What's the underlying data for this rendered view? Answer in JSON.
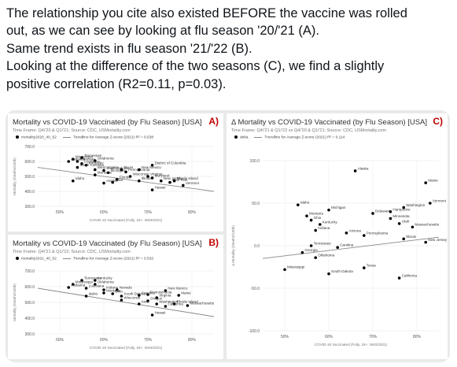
{
  "tweet": {
    "lines": [
      "The relationship you cite also existed BEFORE the vaccine was rolled",
      "out, as we can see by looking at flu season '20/'21 (A).",
      "Same trend exists in flu season '21/'22 (B).",
      "Looking at the difference of the two seasons (C), we find a slightly",
      "positive correlation (R2=0.11, p=0.03)."
    ]
  },
  "colors": {
    "text": "#0f1419",
    "tag": "#c00000",
    "dots": "#000000",
    "trend": "#888888",
    "card_bg": "#e9e9e9"
  },
  "chart_data": [
    {
      "type": "scatter",
      "tag": "A)",
      "title": "Mortality vs COVID-19 Vaccinated (by Flu Season) [USA]",
      "subtitle": "Time Frame: Q4/'20 & Q1/'21; Source: CDC, USMortality.com",
      "legend": [
        "mortality2020_40_52",
        "Trendline for Average Z-score (2021) R² = 0.538"
      ],
      "xlabel": "COVID-19 Vaccinated (Fully, 18+; W40/2021)",
      "ylabel": "Mortality (Deaths/100k)",
      "x_ticks": [
        "50%",
        "60%",
        "70%",
        "80%"
      ],
      "y_ticks": [
        "300.0",
        "400.0",
        "500.0",
        "600.0",
        "700.0"
      ],
      "xlim": [
        45,
        85
      ],
      "ylim": [
        300,
        700
      ],
      "trendline": [
        [
          45,
          560
        ],
        [
          85,
          400
        ]
      ],
      "points": [
        {
          "x": 53,
          "y": 615,
          "label": "Mississippi"
        },
        {
          "x": 55,
          "y": 625,
          "label": "Tennessee"
        },
        {
          "x": 52,
          "y": 600,
          "label": "Alabama"
        },
        {
          "x": 54,
          "y": 600,
          "label": "Arkansas"
        },
        {
          "x": 58,
          "y": 605,
          "label": "Oklahoma"
        },
        {
          "x": 55,
          "y": 585,
          "label": "Louisiana"
        },
        {
          "x": 56,
          "y": 575,
          "label": "Kentucky"
        },
        {
          "x": 54,
          "y": 560,
          "label": "South Carolina"
        },
        {
          "x": 58,
          "y": 545,
          "label": "West Virginia"
        },
        {
          "x": 60,
          "y": 540,
          "label": "South Dakota"
        },
        {
          "x": 61,
          "y": 525,
          "label": "Michigan"
        },
        {
          "x": 58,
          "y": 510,
          "label": "Montana"
        },
        {
          "x": 53,
          "y": 470,
          "label": "Idaho"
        },
        {
          "x": 64,
          "y": 545,
          "label": "Texas"
        },
        {
          "x": 65,
          "y": 530,
          "label": "Pennsylvania"
        },
        {
          "x": 68,
          "y": 545,
          "label": "New Mexico"
        },
        {
          "x": 71,
          "y": 575,
          "label": "District of Columbia"
        },
        {
          "x": 66,
          "y": 500,
          "label": "Wisconsin"
        },
        {
          "x": 70,
          "y": 500,
          "label": "Virginia"
        },
        {
          "x": 71,
          "y": 490,
          "label": "Maryland"
        },
        {
          "x": 63,
          "y": 480,
          "label": "Florida"
        },
        {
          "x": 60,
          "y": 455,
          "label": "Alaska"
        },
        {
          "x": 62,
          "y": 460,
          "label": "Iowa"
        },
        {
          "x": 68,
          "y": 470,
          "label": "Illinois"
        },
        {
          "x": 73,
          "y": 470,
          "label": "New Jersey"
        },
        {
          "x": 75,
          "y": 460,
          "label": "New York"
        },
        {
          "x": 76,
          "y": 470,
          "label": "Rhode Island"
        },
        {
          "x": 78,
          "y": 440,
          "label": "Vermont"
        },
        {
          "x": 71,
          "y": 410,
          "label": "Hawaii"
        }
      ]
    },
    {
      "type": "scatter",
      "tag": "B)",
      "title": "Mortality vs COVID-19 Vaccinated (by Flu Season) [USA]",
      "subtitle": "Time Frame: Q4/'21 & Q1/'22; Source: CDC, USMortality.com",
      "legend": [
        "mortality2021_40_52",
        "Trendline for Average Z-score (2021) R² = 0.532"
      ],
      "xlabel": "COVID-19 Vaccinated (Fully, 18+; W40/2021)",
      "ylabel": "Mortality (Deaths/100k)",
      "x_ticks": [
        "50%",
        "60%",
        "70%",
        "80%"
      ],
      "y_ticks": [
        "300.0",
        "400.0",
        "500.0",
        "600.0",
        "700.0"
      ],
      "xlim": [
        45,
        85
      ],
      "ylim": [
        300,
        700
      ],
      "trendline": [
        [
          45,
          590
        ],
        [
          85,
          410
        ]
      ],
      "points": [
        {
          "x": 53,
          "y": 615,
          "label": "Mississippi"
        },
        {
          "x": 55,
          "y": 640,
          "label": "Tennessee"
        },
        {
          "x": 58,
          "y": 640,
          "label": "Kentucky"
        },
        {
          "x": 52,
          "y": 595,
          "label": "Alabama"
        },
        {
          "x": 58,
          "y": 615,
          "label": "Oklahoma"
        },
        {
          "x": 56,
          "y": 590,
          "label": "Louisiana"
        },
        {
          "x": 60,
          "y": 580,
          "label": "Indiana"
        },
        {
          "x": 63,
          "y": 580,
          "label": "Nevada"
        },
        {
          "x": 60,
          "y": 560,
          "label": "Montana"
        },
        {
          "x": 62,
          "y": 555,
          "label": "Ohio"
        },
        {
          "x": 64,
          "y": 540,
          "label": "South Dakota"
        },
        {
          "x": 68,
          "y": 545,
          "label": "Carolina"
        },
        {
          "x": 70,
          "y": 550,
          "label": "Pennsylvania"
        },
        {
          "x": 74,
          "y": 575,
          "label": "New Mexico"
        },
        {
          "x": 56,
          "y": 540,
          "label": "Idaho"
        },
        {
          "x": 64,
          "y": 515,
          "label": "Wisconsin"
        },
        {
          "x": 70,
          "y": 510,
          "label": "Oregon"
        },
        {
          "x": 72,
          "y": 530,
          "label": "Virginia"
        },
        {
          "x": 77,
          "y": 545,
          "label": "Maine"
        },
        {
          "x": 68,
          "y": 490,
          "label": "Iowa"
        },
        {
          "x": 72,
          "y": 490,
          "label": "Washington"
        },
        {
          "x": 76,
          "y": 490,
          "label": "Rhode Island"
        },
        {
          "x": 74,
          "y": 475,
          "label": "California"
        },
        {
          "x": 79,
          "y": 480,
          "label": "Massachusetts"
        },
        {
          "x": 71,
          "y": 420,
          "label": "Hawaii"
        }
      ]
    },
    {
      "type": "scatter",
      "tag": "C)",
      "title": "Δ Mortality vs COVID-19 Vaccinated (by Flu Season) [USA]",
      "subtitle": "Time Frame: Q4/'21 & Q1/'22 vs Q4/'20 & Q1/'21; Source: CDC, USMortality.com",
      "legend": [
        "delta",
        "Trendline for Average Z-score (2021) R² = 0.114"
      ],
      "xlabel": "COVID-19 Vaccinated (Fully, 18+; W40/2021)",
      "ylabel": "Δ Mortality (Deaths/100k)",
      "x_ticks": [
        "50%",
        "60%",
        "70%",
        "80%"
      ],
      "y_ticks": [
        "-100.0",
        "-50.0",
        "0.0",
        "50.0",
        "100.0"
      ],
      "xlim": [
        45,
        85
      ],
      "ylim": [
        -100,
        100
      ],
      "trendline": [
        [
          45,
          -15
        ],
        [
          85,
          10
        ]
      ],
      "points": [
        {
          "x": 66,
          "y": 88,
          "label": "Alaska"
        },
        {
          "x": 82,
          "y": 74,
          "label": "Maine"
        },
        {
          "x": 83,
          "y": 50,
          "label": "Vermont"
        },
        {
          "x": 53,
          "y": 48,
          "label": "Idaho"
        },
        {
          "x": 77,
          "y": 45,
          "label": "Washington"
        },
        {
          "x": 60,
          "y": 42,
          "label": "Michigan"
        },
        {
          "x": 70,
          "y": 38,
          "label": "Delaware"
        },
        {
          "x": 74,
          "y": 40,
          "label": "Hampshire"
        },
        {
          "x": 55,
          "y": 35,
          "label": "Montana"
        },
        {
          "x": 56,
          "y": 30,
          "label": "Ohio"
        },
        {
          "x": 74,
          "y": 32,
          "label": "Minnesota"
        },
        {
          "x": 76,
          "y": 26,
          "label": "Utah"
        },
        {
          "x": 58,
          "y": 25,
          "label": "Kentucky"
        },
        {
          "x": 79,
          "y": 22,
          "label": "Massachusetts"
        },
        {
          "x": 57,
          "y": 18,
          "label": "Indiana"
        },
        {
          "x": 64,
          "y": 15,
          "label": "Arizona"
        },
        {
          "x": 68,
          "y": 12,
          "label": "Pennsylvania"
        },
        {
          "x": 77,
          "y": 8,
          "label": "Illinois"
        },
        {
          "x": 56,
          "y": 0,
          "label": "Tennessee"
        },
        {
          "x": 62,
          "y": -2,
          "label": "Carolina"
        },
        {
          "x": 54,
          "y": -8,
          "label": "Georgia"
        },
        {
          "x": 57,
          "y": -14,
          "label": "Oklahoma"
        },
        {
          "x": 82,
          "y": 4,
          "label": "New Jersey"
        },
        {
          "x": 50,
          "y": -28,
          "label": "Mississippi"
        },
        {
          "x": 60,
          "y": -33,
          "label": "South Dakota"
        },
        {
          "x": 68,
          "y": -26,
          "label": "Texas"
        },
        {
          "x": 76,
          "y": -38,
          "label": "California"
        }
      ]
    }
  ]
}
